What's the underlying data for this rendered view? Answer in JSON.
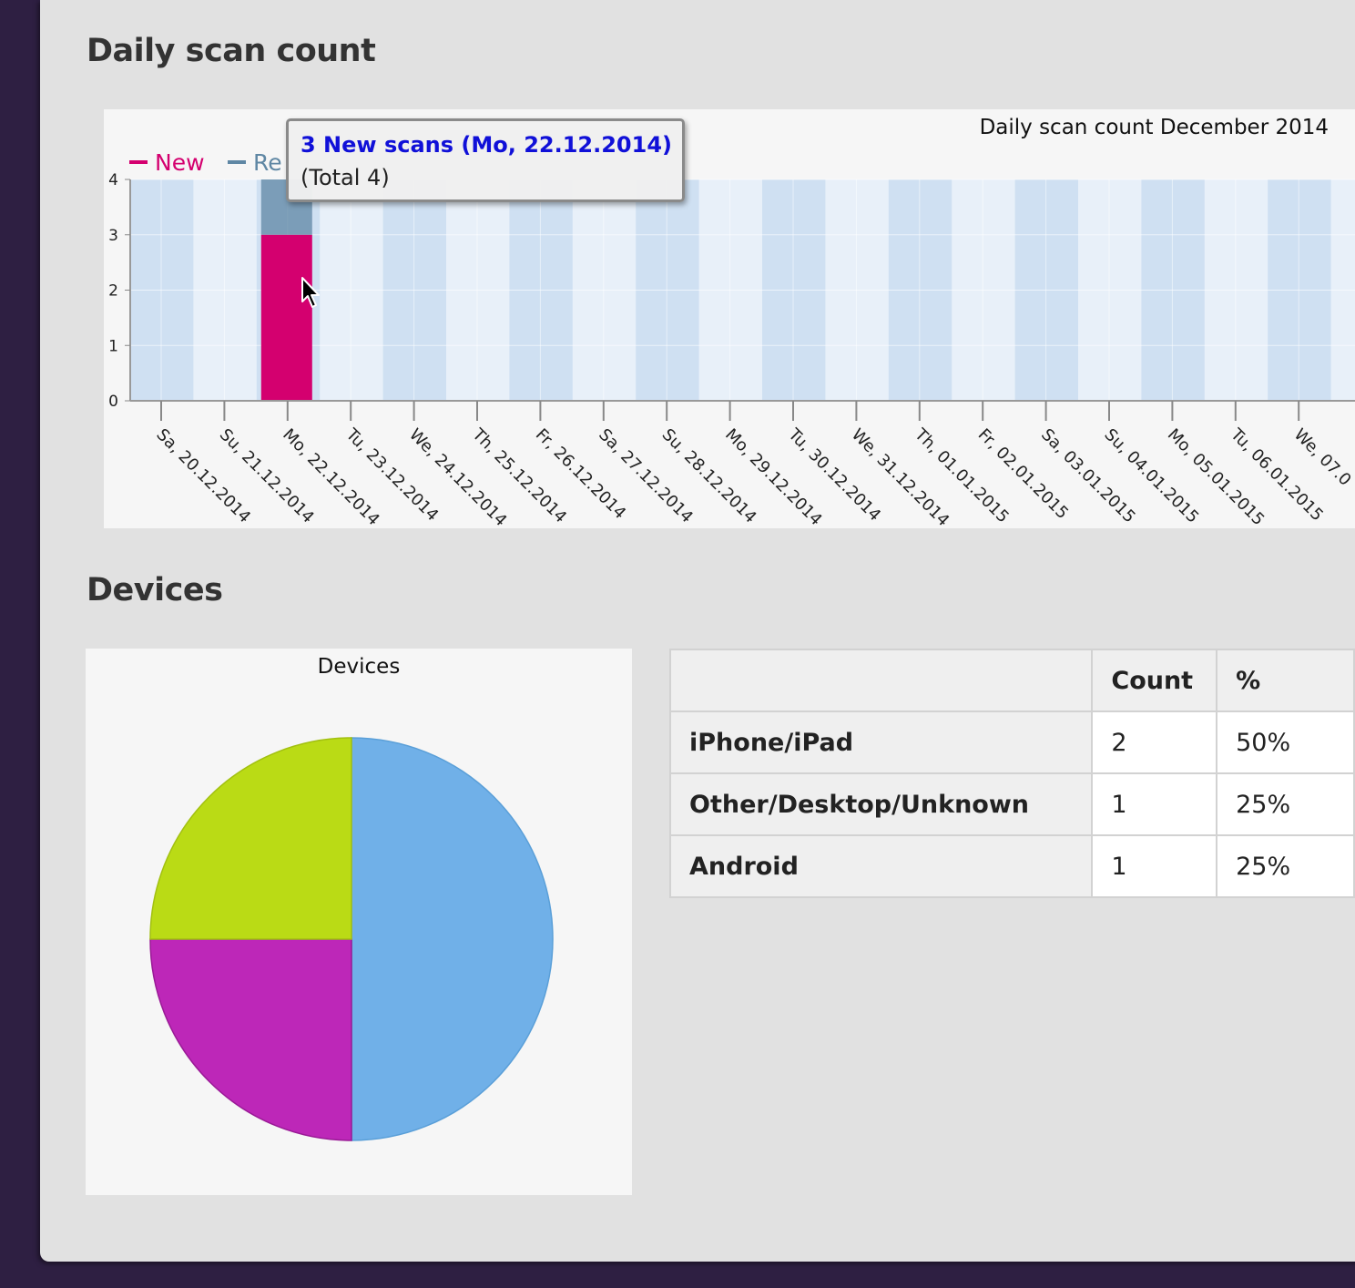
{
  "page": {
    "scan_section_title": "Daily scan count",
    "devices_section_title": "Devices"
  },
  "colors": {
    "new": "#d4006f",
    "returning": "#5f87a4",
    "band_dark": "#cfe0f2",
    "band_light": "#e8f0f9",
    "iphone": "#70b0e8",
    "other": "#bd27b8",
    "android": "#badb15"
  },
  "scan_chart": {
    "legend_new": "New",
    "legend_returning_visible": "Re",
    "tooltip": {
      "title": "3 New scans (Mo, 22.12.2014)",
      "subtitle": "(Total 4)"
    }
  },
  "devices_table": {
    "headers": [
      "",
      "Count",
      "%"
    ],
    "rows": [
      {
        "label": "iPhone/iPad",
        "count": "2",
        "pct": "50%"
      },
      {
        "label": "Other/Desktop/Unknown",
        "count": "1",
        "pct": "25%"
      },
      {
        "label": "Android",
        "count": "1",
        "pct": "25%"
      }
    ]
  },
  "chart_data": [
    {
      "type": "bar",
      "stacked": true,
      "title": "Daily scan count December 2014",
      "xlabel": "",
      "ylabel": "",
      "ylim": [
        0,
        4
      ],
      "yticks": [
        "0",
        "1",
        "2",
        "3",
        "4"
      ],
      "categories": [
        "Sa, 20.12.2014",
        "Su, 21.12.2014",
        "Mo, 22.12.2014",
        "Tu, 23.12.2014",
        "We, 24.12.2014",
        "Th, 25.12.2014",
        "Fr, 26.12.2014",
        "Sa, 27.12.2014",
        "Su, 28.12.2014",
        "Mo, 29.12.2014",
        "Tu, 30.12.2014",
        "We, 31.12.2014",
        "Th, 01.01.2015",
        "Fr, 02.01.2015",
        "Sa, 03.01.2015",
        "Su, 04.01.2015",
        "Mo, 05.01.2015",
        "Tu, 06.01.2015",
        "We, 07.0"
      ],
      "series": [
        {
          "name": "New",
          "values": [
            0,
            0,
            3,
            0,
            0,
            0,
            0,
            0,
            0,
            0,
            0,
            0,
            0,
            0,
            0,
            0,
            0,
            0,
            0
          ]
        },
        {
          "name": "Re",
          "values": [
            0,
            0,
            1,
            0,
            0,
            0,
            0,
            0,
            0,
            0,
            0,
            0,
            0,
            0,
            0,
            0,
            0,
            0,
            0
          ]
        }
      ],
      "legend_position": "top-left",
      "grid": true
    },
    {
      "type": "pie",
      "title": "Devices",
      "labels": [
        "iPhone/iPad",
        "Other/Desktop/Unknown",
        "Android"
      ],
      "values": [
        2,
        1,
        1
      ]
    }
  ]
}
